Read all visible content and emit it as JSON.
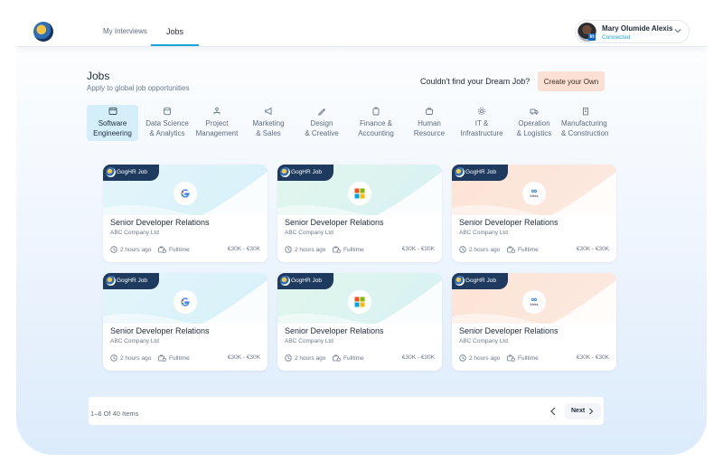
{
  "header": {
    "logo_icon": "goghr-logo",
    "nav": [
      {
        "label": "My Interviews",
        "active": false
      },
      {
        "label": "Jobs",
        "active": true
      }
    ],
    "user": {
      "name": "Mary Olumide Alexis",
      "status": "Connected",
      "badge": "in"
    }
  },
  "jobs_header": {
    "title": "Jobs",
    "subtitle": "Apply to global job opportunities",
    "dream_text": "Couldn't find your Dream Job?",
    "create_label": "Create your Own"
  },
  "categories": [
    {
      "label": "Software\nEngineering",
      "icon": "code-window-icon",
      "active": true
    },
    {
      "label": "Data Science\n& Analytics",
      "icon": "database-icon",
      "active": false
    },
    {
      "label": "Project\nManagement",
      "icon": "org-chart-icon",
      "active": false
    },
    {
      "label": "Marketing\n& Sales",
      "icon": "megaphone-icon",
      "active": false
    },
    {
      "label": "Design\n& Creative",
      "icon": "pen-icon",
      "active": false
    },
    {
      "label": "Finance &\nAccounting",
      "icon": "wallet-icon",
      "active": false
    },
    {
      "label": "Human\nResource",
      "icon": "briefcase-icon",
      "active": false
    },
    {
      "label": "IT &\nInfrastructure",
      "icon": "cog-icon",
      "active": false
    },
    {
      "label": "Operation\n& Logistics",
      "icon": "truck-icon",
      "active": false
    },
    {
      "label": "Manufacturing\n& Construction",
      "icon": "building-icon",
      "active": false
    }
  ],
  "jobs": [
    {
      "badge": "GogHR Job",
      "brand": "google",
      "title": "Senior Developer Relations",
      "company": "ABC Company Ltd",
      "posted": "2 hours ago",
      "type": "Fulltime",
      "salary": "€30K - €30K",
      "theme": "blue"
    },
    {
      "badge": "GogHR Job",
      "brand": "microsoft",
      "title": "Senior Developer Relations",
      "company": "ABC Company Ltd",
      "posted": "2 hours ago",
      "type": "Fulltime",
      "salary": "€30K - €30K",
      "theme": "green"
    },
    {
      "badge": "GogHR Job",
      "brand": "meta",
      "brand_text": "Meta",
      "title": "Senior Developer Relations",
      "company": "ABC Company Ltd",
      "posted": "2 hours ago",
      "type": "Fulltime",
      "salary": "€30K - €30K",
      "theme": "peach"
    },
    {
      "badge": "GogHR Job",
      "brand": "google",
      "title": "Senior Developer Relations",
      "company": "ABC Company Ltd",
      "posted": "2 hours ago",
      "type": "Fulltime",
      "salary": "€30K - €30K",
      "theme": "blue"
    },
    {
      "badge": "GogHR Job",
      "brand": "microsoft",
      "title": "Senior Developer Relations",
      "company": "ABC Company Ltd",
      "posted": "2 hours ago",
      "type": "Fulltime",
      "salary": "€30K - €30K",
      "theme": "green"
    },
    {
      "badge": "GogHR Job",
      "brand": "meta",
      "brand_text": "Meta",
      "title": "Senior Developer Relations",
      "company": "ABC Company Ltd",
      "posted": "2 hours ago",
      "type": "Fulltime",
      "salary": "€30K - €30K",
      "theme": "peach"
    }
  ],
  "pagination": {
    "info": "1–6 Of 40 Items",
    "next_label": "Next"
  },
  "colors": {
    "accent": "#1aa3d9",
    "navy": "#1e3a5f",
    "create_bg": "#fbe0d3",
    "active_cat_bg": "#d4eefa"
  }
}
